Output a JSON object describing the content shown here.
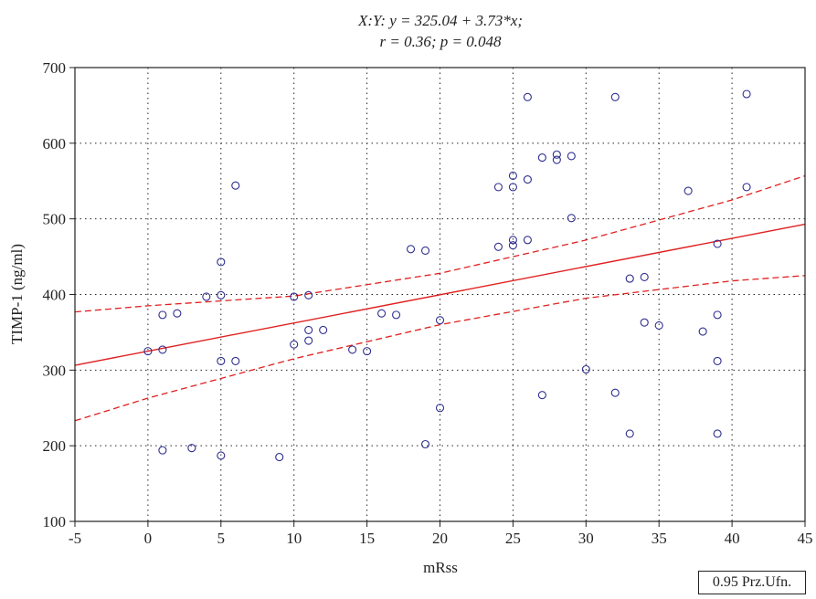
{
  "chart_data": {
    "type": "scatter",
    "title_line1": "X:Y: y = 325.04 + 3.73*x;",
    "title_line2": "r = 0.36; p = 0.048",
    "xlabel": "mRss",
    "ylabel": "TIMP-1 (ng/ml)",
    "xlim": [
      -5,
      45
    ],
    "ylim": [
      100,
      700
    ],
    "xticks": [
      -5,
      0,
      5,
      10,
      15,
      20,
      25,
      30,
      35,
      40,
      45
    ],
    "yticks": [
      100,
      200,
      300,
      400,
      500,
      600,
      700
    ],
    "grid": true,
    "legend": "0.95 Prz.Ufn.",
    "legend_position": "bottom-right",
    "colors": {
      "points": "#2e2e8f",
      "fit": "#e02020",
      "axis": "#222222",
      "grid": "#222222"
    },
    "regression": {
      "intercept": 325.04,
      "slope": 3.73
    },
    "confidence_band": {
      "upper": [
        [
          -5,
          377
        ],
        [
          0,
          385
        ],
        [
          10,
          398
        ],
        [
          20,
          428
        ],
        [
          30,
          472
        ],
        [
          40,
          525
        ],
        [
          45,
          557
        ]
      ],
      "lower": [
        [
          -5,
          233
        ],
        [
          0,
          263
        ],
        [
          10,
          315
        ],
        [
          20,
          360
        ],
        [
          30,
          395
        ],
        [
          40,
          418
        ],
        [
          45,
          425
        ]
      ]
    },
    "points": [
      {
        "x": 0,
        "y": 325
      },
      {
        "x": 1,
        "y": 327
      },
      {
        "x": 1,
        "y": 373
      },
      {
        "x": 1,
        "y": 194
      },
      {
        "x": 2,
        "y": 375
      },
      {
        "x": 3,
        "y": 197
      },
      {
        "x": 4,
        "y": 397
      },
      {
        "x": 5,
        "y": 443
      },
      {
        "x": 5,
        "y": 399
      },
      {
        "x": 5,
        "y": 312
      },
      {
        "x": 5,
        "y": 187
      },
      {
        "x": 6,
        "y": 544
      },
      {
        "x": 6,
        "y": 312
      },
      {
        "x": 9,
        "y": 185
      },
      {
        "x": 10,
        "y": 397
      },
      {
        "x": 10,
        "y": 334
      },
      {
        "x": 11,
        "y": 399
      },
      {
        "x": 11,
        "y": 353
      },
      {
        "x": 11,
        "y": 339
      },
      {
        "x": 12,
        "y": 353
      },
      {
        "x": 14,
        "y": 327
      },
      {
        "x": 15,
        "y": 325
      },
      {
        "x": 16,
        "y": 375
      },
      {
        "x": 17,
        "y": 373
      },
      {
        "x": 18,
        "y": 460
      },
      {
        "x": 19,
        "y": 458
      },
      {
        "x": 19,
        "y": 202
      },
      {
        "x": 20,
        "y": 366
      },
      {
        "x": 20,
        "y": 250
      },
      {
        "x": 24,
        "y": 542
      },
      {
        "x": 24,
        "y": 463
      },
      {
        "x": 25,
        "y": 557
      },
      {
        "x": 25,
        "y": 542
      },
      {
        "x": 25,
        "y": 472
      },
      {
        "x": 25,
        "y": 465
      },
      {
        "x": 26,
        "y": 661
      },
      {
        "x": 26,
        "y": 552
      },
      {
        "x": 26,
        "y": 472
      },
      {
        "x": 27,
        "y": 581
      },
      {
        "x": 27,
        "y": 267
      },
      {
        "x": 28,
        "y": 585
      },
      {
        "x": 28,
        "y": 578
      },
      {
        "x": 29,
        "y": 583
      },
      {
        "x": 29,
        "y": 501
      },
      {
        "x": 30,
        "y": 301
      },
      {
        "x": 32,
        "y": 661
      },
      {
        "x": 32,
        "y": 270
      },
      {
        "x": 33,
        "y": 421
      },
      {
        "x": 33,
        "y": 216
      },
      {
        "x": 34,
        "y": 423
      },
      {
        "x": 34,
        "y": 363
      },
      {
        "x": 35,
        "y": 359
      },
      {
        "x": 37,
        "y": 537
      },
      {
        "x": 38,
        "y": 351
      },
      {
        "x": 39,
        "y": 467
      },
      {
        "x": 39,
        "y": 373
      },
      {
        "x": 39,
        "y": 312
      },
      {
        "x": 39,
        "y": 216
      },
      {
        "x": 41,
        "y": 665
      },
      {
        "x": 41,
        "y": 542
      }
    ]
  }
}
